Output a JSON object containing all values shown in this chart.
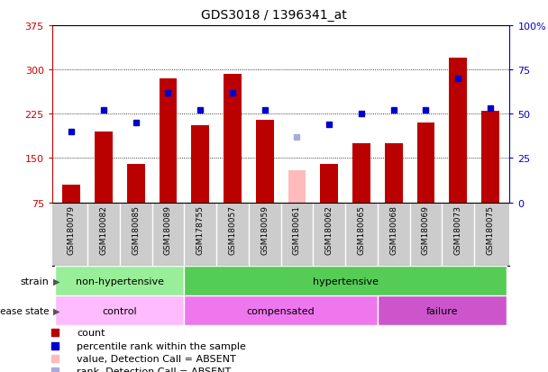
{
  "title": "GDS3018 / 1396341_at",
  "samples": [
    "GSM180079",
    "GSM180082",
    "GSM180085",
    "GSM180089",
    "GSM178755",
    "GSM180057",
    "GSM180059",
    "GSM180061",
    "GSM180062",
    "GSM180065",
    "GSM180068",
    "GSM180069",
    "GSM180073",
    "GSM180075"
  ],
  "counts": [
    105,
    195,
    140,
    285,
    205,
    293,
    215,
    130,
    140,
    175,
    175,
    210,
    320,
    230
  ],
  "counts_absent": [
    false,
    false,
    false,
    false,
    false,
    false,
    false,
    true,
    false,
    false,
    false,
    false,
    false,
    false
  ],
  "percentiles": [
    40,
    52,
    45,
    62,
    52,
    62,
    52,
    37,
    44,
    50,
    52,
    52,
    70,
    53
  ],
  "percentiles_absent": [
    false,
    false,
    false,
    false,
    false,
    false,
    false,
    true,
    false,
    false,
    false,
    false,
    false,
    false
  ],
  "ylim_left": [
    75,
    375
  ],
  "ylim_right": [
    0,
    100
  ],
  "yticks_left": [
    75,
    150,
    225,
    300,
    375
  ],
  "yticks_right": [
    0,
    25,
    50,
    75,
    100
  ],
  "ytick_labels_left": [
    "75",
    "150",
    "225",
    "300",
    "375"
  ],
  "ytick_labels_right": [
    "0",
    "25",
    "50",
    "75",
    "100%"
  ],
  "bar_color": "#bb0000",
  "bar_color_absent": "#ffbbbb",
  "dot_color": "#0000cc",
  "dot_color_absent": "#aaaadd",
  "strain_groups": [
    {
      "label": "non-hypertensive",
      "start": 0,
      "end": 4,
      "color": "#99ee99"
    },
    {
      "label": "hypertensive",
      "start": 4,
      "end": 14,
      "color": "#55cc55"
    }
  ],
  "disease_groups": [
    {
      "label": "control",
      "start": 0,
      "end": 4,
      "color": "#ffbbff"
    },
    {
      "label": "compensated",
      "start": 4,
      "end": 10,
      "color": "#ee77ee"
    },
    {
      "label": "failure",
      "start": 10,
      "end": 14,
      "color": "#cc55cc"
    }
  ],
  "legend_items": [
    {
      "label": "count",
      "color": "#bb0000"
    },
    {
      "label": "percentile rank within the sample",
      "color": "#0000cc"
    },
    {
      "label": "value, Detection Call = ABSENT",
      "color": "#ffbbbb"
    },
    {
      "label": "rank, Detection Call = ABSENT",
      "color": "#aaaadd"
    }
  ],
  "label_color_left": "#cc0000",
  "label_color_right": "#0000cc",
  "xticklabel_bg": "#cccccc"
}
